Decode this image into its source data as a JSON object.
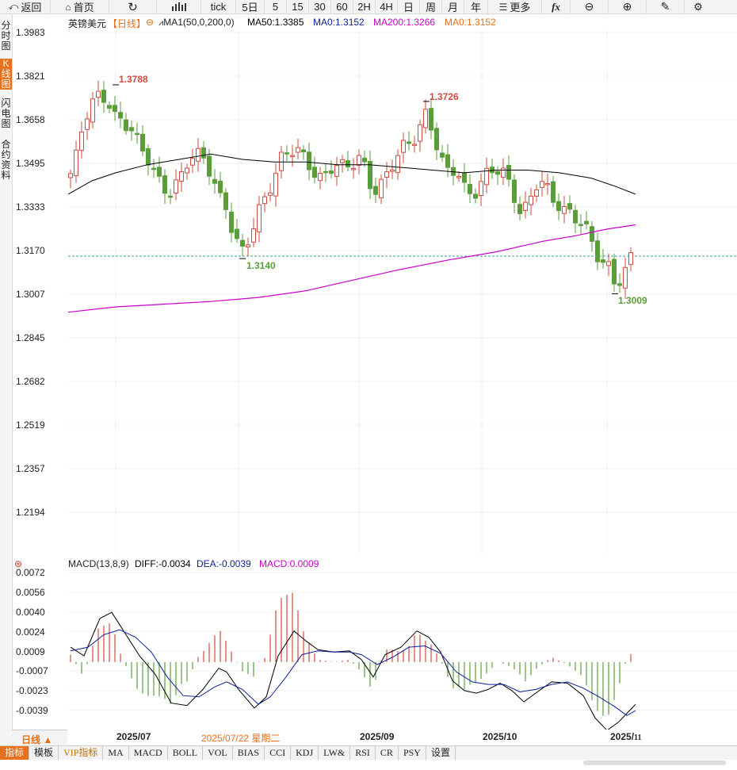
{
  "toolbar": {
    "back": "返回",
    "home": "首页",
    "tick": "tick",
    "p5d": "5日",
    "m5": "5",
    "m15": "15",
    "m30": "30",
    "m60": "60",
    "h2": "2H",
    "h4": "4H",
    "day": "日",
    "week": "周",
    "month": "月",
    "year": "年",
    "more": "更多",
    "fx": "fx"
  },
  "sidebar": {
    "items": [
      "分时图",
      "K线图",
      "闪电图",
      "合约资料"
    ],
    "active": "K线图"
  },
  "header": {
    "symbol": "英镑美元",
    "period": "【日线】",
    "ma_settings": "MA1(50,0,200,0)",
    "ma50": "MA50:1.3385",
    "ma0a": "MA0:1.3152",
    "ma200": "MA200:1.3266",
    "ma0b": "MA0:1.3152"
  },
  "price_axis": {
    "ticks": [
      "1.3983",
      "1.3821",
      "1.3658",
      "1.3495",
      "1.3333",
      "1.3170",
      "1.3007",
      "1.2845",
      "1.2682",
      "1.2519",
      "1.2357",
      "1.2194"
    ]
  },
  "annotations": {
    "high1": "1.3788",
    "high2": "1.3726",
    "low1": "1.3140",
    "low2": "1.3009"
  },
  "macd": {
    "label": "MACD(13,8,9)",
    "diff": "DIFF:-0.0034",
    "dea": "DEA:-0.0039",
    "macd": "MACD:0.0009",
    "ticks": [
      "0.0072",
      "0.0056",
      "0.0040",
      "0.0024",
      "0.0009",
      "-0.0007",
      "-0.0023",
      "-0.0039"
    ]
  },
  "dates": {
    "period_button": "日线 ▲",
    "d1": "2025/07",
    "d2": "2025/07/22 星期二",
    "d3": "2025/09",
    "d4": "2025/10",
    "d5": "2025/",
    "d5b": "11"
  },
  "bottom_tabs": [
    "指标",
    "模板",
    "VIP指标",
    "MA",
    "MACD",
    "BOLL",
    "VOL",
    "BIAS",
    "CCI",
    "KDJ",
    "LW&",
    "RSI",
    "CR",
    "PSY",
    "设置"
  ],
  "colors": {
    "up": "#d24b3e",
    "down": "#5a9e3a",
    "ma50": "#000000",
    "ma200": "#cc00cc",
    "accent": "#e8701a"
  },
  "chart_data": {
    "type": "candlestick",
    "title": "英镑美元 日线",
    "y_range": [
      1.2194,
      1.3983
    ],
    "ma50": [
      1.3385
    ],
    "ma200": [
      1.3266
    ],
    "current_price": 1.3152,
    "marked_highs": [
      1.3788,
      1.3726
    ],
    "marked_lows": [
      1.314,
      1.3009
    ],
    "x_labels": [
      "2025/07",
      "2025/09",
      "2025/10",
      "2025/11"
    ],
    "macd": {
      "params": "13,8,9",
      "diff": -0.0034,
      "dea": -0.0039,
      "macd": 0.0009,
      "y_range": [
        -0.0039,
        0.0072
      ]
    }
  }
}
